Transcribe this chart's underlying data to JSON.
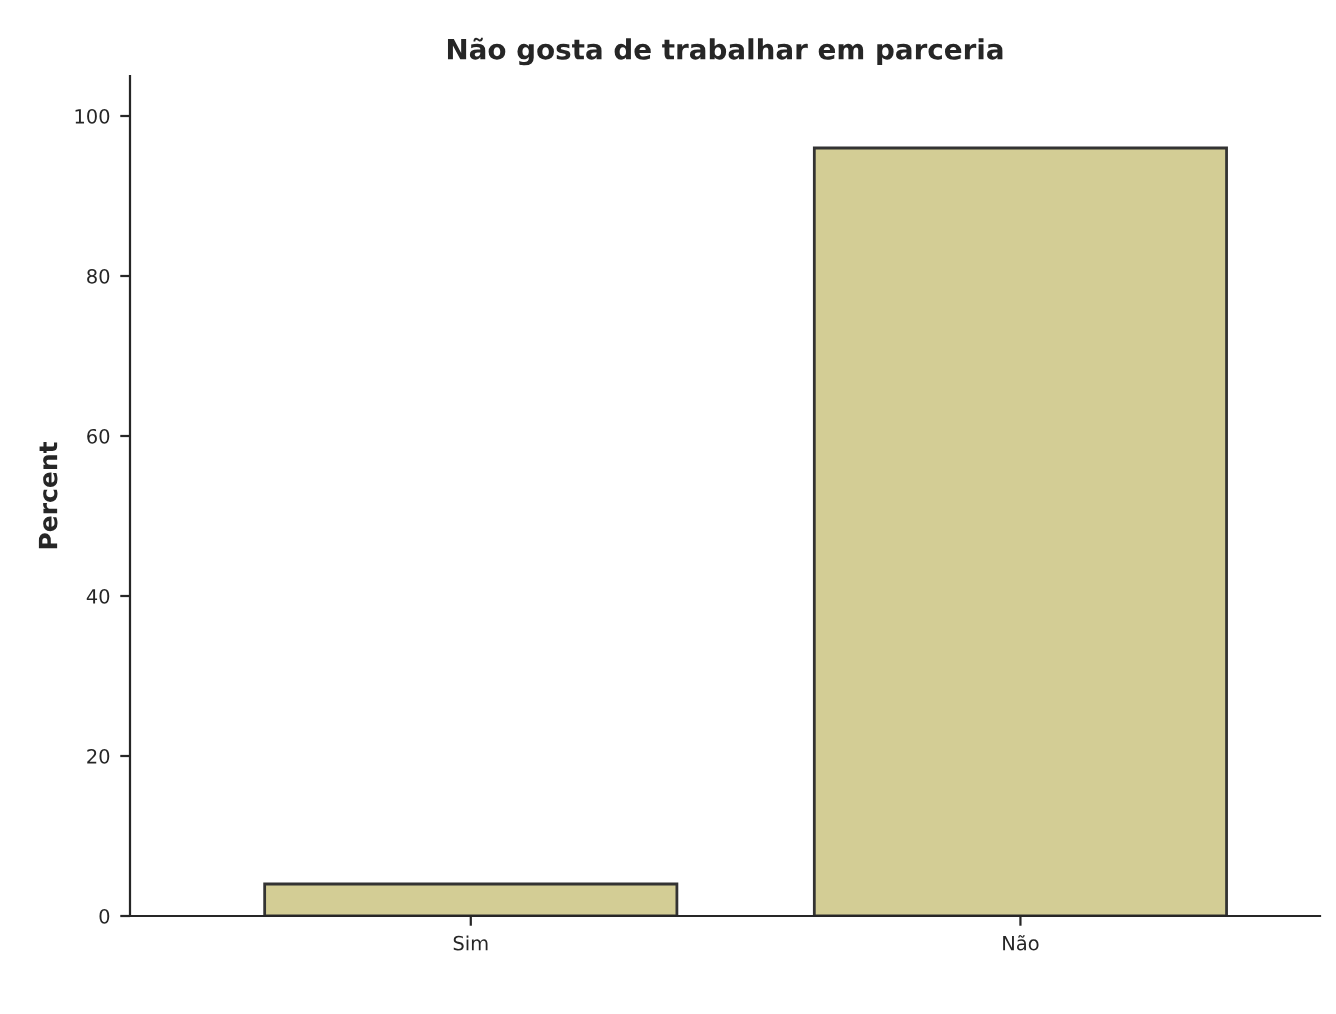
{
  "chart_data": {
    "type": "bar",
    "title": "Não gosta de trabalhar em parceria",
    "ylabel": "Percent",
    "categories": [
      "Sim",
      "Não"
    ],
    "values": [
      4,
      96
    ],
    "color": "#d3cd95",
    "ylim": [
      0,
      105
    ],
    "yticks": [
      0,
      20,
      40,
      60,
      80,
      100
    ],
    "grid": false,
    "legend": false
  }
}
